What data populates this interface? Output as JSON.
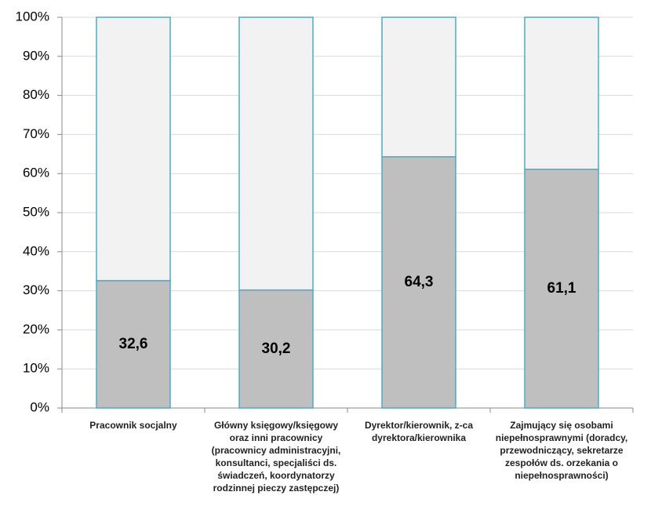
{
  "chart_data": {
    "type": "stacked-bar",
    "categories": [
      "Pracownik socjalny",
      "Główny księgowy/księgowy oraz inni pracownicy (pracownicy administracyjni, konsultanci, specjaliści ds. świadczeń, koordynatorzy rodzinnej pieczy zastępczej)",
      "Dyrektor/kierownik, z-ca dyrektora/kierownika",
      "Zajmujący się osobami niepełnosprawnymi (doradcy, przewodniczący, sekretarze zespołów ds. orzekania o niepełnosprawności)"
    ],
    "series": [
      {
        "color": "#bfbfbf",
        "values": [
          32.6,
          30.2,
          64.3,
          61.1
        ],
        "value_labels": [
          "32,6",
          "30,2",
          "64,3",
          "61,1"
        ]
      },
      {
        "color": "#f2f2f2",
        "values": [
          67.4,
          69.8,
          35.7,
          38.9
        ]
      }
    ],
    "border_color": "#4bacc6",
    "ylim": [
      0,
      100
    ],
    "yticks": [
      {
        "value": 0,
        "label": "0%"
      },
      {
        "value": 10,
        "label": "10%"
      },
      {
        "value": 20,
        "label": "20%"
      },
      {
        "value": 30,
        "label": "30%"
      },
      {
        "value": 40,
        "label": "40%"
      },
      {
        "value": 50,
        "label": "50%"
      },
      {
        "value": 60,
        "label": "60%"
      },
      {
        "value": 70,
        "label": "70%"
      },
      {
        "value": 80,
        "label": "80%"
      },
      {
        "value": 90,
        "label": "90%"
      },
      {
        "value": 100,
        "label": "100%"
      }
    ],
    "grid": true
  }
}
